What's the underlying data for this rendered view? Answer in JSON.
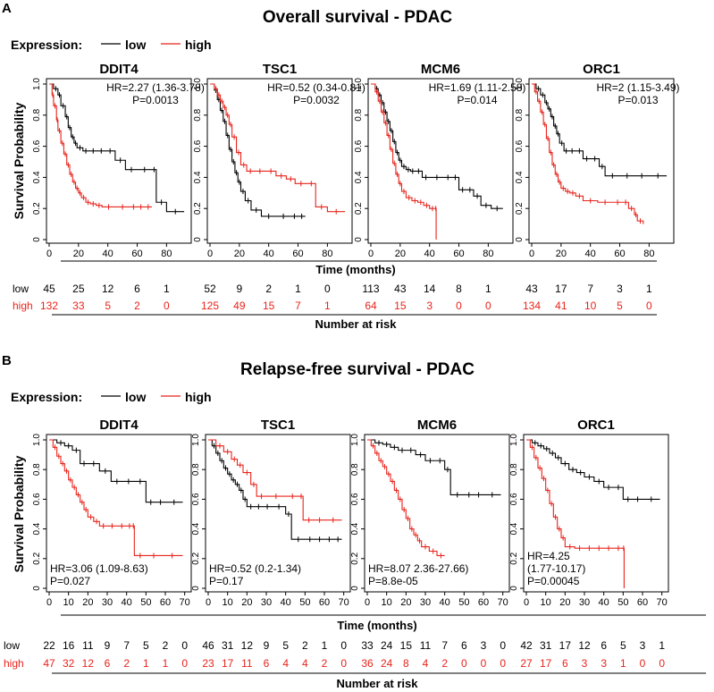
{
  "colors": {
    "low": "#000000",
    "high": "#e8231b"
  },
  "legend": {
    "label": "Expression:",
    "low": "low",
    "high": "high"
  },
  "common": {
    "ylabel": "Survival Probability",
    "xlabel": "Time (months)",
    "risk_title": "Number at risk",
    "risk_low": "low",
    "risk_high": "high"
  },
  "panels": [
    {
      "letter": "A",
      "title": "Overall survival - PDAC",
      "risk_low": [
        45,
        25,
        12,
        6,
        1,
        52,
        9,
        2,
        1,
        0,
        113,
        43,
        14,
        8,
        1,
        43,
        17,
        7,
        3,
        1
      ],
      "risk_high": [
        132,
        33,
        5,
        2,
        0,
        125,
        49,
        15,
        7,
        1,
        64,
        15,
        3,
        0,
        0,
        134,
        41,
        10,
        5,
        0
      ]
    },
    {
      "letter": "B",
      "title": "Relapse-free survival - PDAC",
      "risk_low": [
        22,
        16,
        11,
        9,
        7,
        5,
        2,
        0,
        46,
        31,
        12,
        9,
        5,
        2,
        1,
        0,
        33,
        24,
        15,
        11,
        7,
        6,
        3,
        0,
        42,
        31,
        17,
        12,
        6,
        5,
        3,
        1
      ],
      "risk_high": [
        47,
        32,
        12,
        6,
        2,
        1,
        1,
        0,
        23,
        17,
        11,
        6,
        4,
        4,
        2,
        0,
        36,
        24,
        8,
        4,
        2,
        0,
        0,
        0,
        27,
        17,
        6,
        3,
        3,
        1,
        0,
        0
      ]
    }
  ],
  "chart_data": [
    {
      "type": "line",
      "panel": "A",
      "title": "DDIT4",
      "xlabel": "Time (months)",
      "ylabel": "Survival Probability",
      "xlim": [
        0,
        95
      ],
      "xticks": [
        0,
        20,
        40,
        60,
        80
      ],
      "ylim": [
        0,
        1
      ],
      "yticks": [
        0,
        0.2,
        0.4,
        0.6,
        0.8,
        1.0
      ],
      "annotation": [
        "HR=2.27 (1.36-3.78)",
        "P=0.0013"
      ],
      "annot_pos": "top-right",
      "series": [
        {
          "name": "low",
          "x": [
            0,
            3,
            6,
            8,
            11,
            13,
            15,
            17,
            19,
            23,
            27,
            33,
            38,
            45,
            52,
            60,
            70,
            73,
            80,
            92
          ],
          "y": [
            1,
            0.97,
            0.93,
            0.86,
            0.79,
            0.72,
            0.66,
            0.62,
            0.59,
            0.57,
            0.57,
            0.57,
            0.57,
            0.51,
            0.45,
            0.45,
            0.45,
            0.24,
            0.18,
            0.18
          ]
        },
        {
          "name": "high",
          "x": [
            0,
            2,
            3,
            5,
            6,
            8,
            10,
            12,
            14,
            16,
            18,
            20,
            22,
            25,
            28,
            32,
            36,
            45,
            55,
            60,
            65,
            70
          ],
          "y": [
            1,
            0.93,
            0.86,
            0.77,
            0.7,
            0.62,
            0.55,
            0.48,
            0.42,
            0.37,
            0.33,
            0.3,
            0.27,
            0.24,
            0.23,
            0.22,
            0.21,
            0.21,
            0.21,
            0.21,
            0.21,
            0.21
          ]
        }
      ]
    },
    {
      "type": "line",
      "panel": "A",
      "title": "TSC1",
      "xlabel": "Time (months)",
      "ylabel": "Survival Probability",
      "xlim": [
        0,
        95
      ],
      "xticks": [
        0,
        20,
        40,
        60,
        80
      ],
      "ylim": [
        0,
        1
      ],
      "yticks": [
        0,
        0.2,
        0.4,
        0.6,
        0.8,
        1.0
      ],
      "annotation": [
        "HR=0.52 (0.34-0.81)",
        "P=0.0032"
      ],
      "annot_pos": "top-right",
      "series": [
        {
          "name": "low",
          "x": [
            0,
            3,
            5,
            7,
            9,
            11,
            13,
            15,
            17,
            19,
            21,
            24,
            28,
            35,
            45,
            55,
            60,
            65
          ],
          "y": [
            1,
            0.96,
            0.9,
            0.83,
            0.76,
            0.67,
            0.58,
            0.5,
            0.43,
            0.37,
            0.31,
            0.25,
            0.19,
            0.15,
            0.15,
            0.15,
            0.15,
            0.15
          ]
        },
        {
          "name": "high",
          "x": [
            0,
            3,
            5,
            7,
            9,
            11,
            13,
            15,
            18,
            21,
            25,
            30,
            38,
            45,
            52,
            58,
            66,
            72,
            80,
            92
          ],
          "y": [
            1,
            0.97,
            0.93,
            0.89,
            0.85,
            0.8,
            0.74,
            0.66,
            0.56,
            0.48,
            0.44,
            0.44,
            0.44,
            0.41,
            0.39,
            0.36,
            0.36,
            0.21,
            0.18,
            0.18
          ]
        }
      ]
    },
    {
      "type": "line",
      "panel": "A",
      "title": "MCM6",
      "xlabel": "Time (months)",
      "ylabel": "Survival Probability",
      "xlim": [
        0,
        95
      ],
      "xticks": [
        0,
        20,
        40,
        60,
        80
      ],
      "ylim": [
        0,
        1
      ],
      "yticks": [
        0,
        0.2,
        0.4,
        0.6,
        0.8,
        1.0
      ],
      "annotation": [
        "HR=1.69 (1.11-2.58)",
        "P=0.014"
      ],
      "annot_pos": "top-right",
      "series": [
        {
          "name": "low",
          "x": [
            0,
            3,
            5,
            7,
            9,
            11,
            13,
            15,
            17,
            19,
            21,
            24,
            27,
            30,
            35,
            40,
            50,
            55,
            60,
            65,
            70,
            75,
            82,
            90
          ],
          "y": [
            1,
            0.97,
            0.93,
            0.88,
            0.82,
            0.76,
            0.7,
            0.63,
            0.56,
            0.51,
            0.47,
            0.45,
            0.44,
            0.44,
            0.4,
            0.4,
            0.4,
            0.4,
            0.32,
            0.32,
            0.28,
            0.22,
            0.2,
            0.2
          ]
        },
        {
          "name": "high",
          "x": [
            0,
            3,
            5,
            7,
            9,
            11,
            13,
            15,
            17,
            19,
            21,
            24,
            28,
            32,
            36,
            40,
            44,
            44.5
          ],
          "y": [
            1,
            0.95,
            0.89,
            0.82,
            0.75,
            0.67,
            0.58,
            0.49,
            0.42,
            0.36,
            0.31,
            0.27,
            0.25,
            0.24,
            0.22,
            0.2,
            0.2,
            0.0
          ]
        }
      ]
    },
    {
      "type": "line",
      "panel": "A",
      "title": "ORC1",
      "xlabel": "Time (months)",
      "ylabel": "Survival Probability",
      "xlim": [
        0,
        95
      ],
      "xticks": [
        0,
        20,
        40,
        60,
        80
      ],
      "ylim": [
        0,
        1
      ],
      "yticks": [
        0,
        0.2,
        0.4,
        0.6,
        0.8,
        1.0
      ],
      "annotation": [
        "HR=2 (1.15-3.49)",
        "P=0.013"
      ],
      "annot_pos": "top-right",
      "series": [
        {
          "name": "low",
          "x": [
            0,
            3,
            6,
            9,
            11,
            13,
            15,
            17,
            19,
            22,
            25,
            30,
            35,
            40,
            46,
            50,
            60,
            70,
            80,
            92
          ],
          "y": [
            1,
            0.97,
            0.93,
            0.88,
            0.84,
            0.79,
            0.73,
            0.68,
            0.62,
            0.57,
            0.57,
            0.57,
            0.52,
            0.52,
            0.47,
            0.41,
            0.41,
            0.41,
            0.41,
            0.41
          ]
        },
        {
          "name": "high",
          "x": [
            0,
            2,
            4,
            6,
            8,
            10,
            12,
            14,
            16,
            18,
            20,
            23,
            26,
            30,
            35,
            45,
            55,
            62,
            66,
            70,
            72,
            76
          ],
          "y": [
            1,
            0.95,
            0.89,
            0.82,
            0.74,
            0.65,
            0.56,
            0.48,
            0.42,
            0.37,
            0.33,
            0.31,
            0.3,
            0.28,
            0.25,
            0.24,
            0.24,
            0.24,
            0.2,
            0.16,
            0.12,
            0.1
          ]
        }
      ]
    },
    {
      "type": "line",
      "panel": "B",
      "title": "DDIT4",
      "xlabel": "Time (months)",
      "ylabel": "Survival Probability",
      "xlim": [
        0,
        72
      ],
      "xticks": [
        0,
        10,
        20,
        30,
        40,
        50,
        60,
        70
      ],
      "ylim": [
        0,
        1
      ],
      "yticks": [
        0,
        0.2,
        0.4,
        0.6,
        0.8,
        1.0
      ],
      "annotation": [
        "HR=3.06 (1.09-8.63)",
        "P=0.027"
      ],
      "annot_pos": "bottom-left",
      "series": [
        {
          "name": "low",
          "x": [
            0,
            4,
            8,
            12,
            16,
            20,
            26,
            32,
            38,
            44,
            50,
            55,
            60,
            69
          ],
          "y": [
            1,
            0.98,
            0.96,
            0.93,
            0.84,
            0.84,
            0.79,
            0.72,
            0.72,
            0.72,
            0.58,
            0.58,
            0.58,
            0.58
          ]
        },
        {
          "name": "high",
          "x": [
            0,
            2,
            4,
            6,
            8,
            10,
            12,
            14,
            16,
            18,
            20,
            23,
            26,
            30,
            35,
            40,
            43,
            44,
            50,
            58,
            69
          ],
          "y": [
            1,
            0.95,
            0.89,
            0.84,
            0.79,
            0.73,
            0.68,
            0.63,
            0.58,
            0.53,
            0.48,
            0.45,
            0.42,
            0.42,
            0.42,
            0.42,
            0.42,
            0.22,
            0.22,
            0.22,
            0.22
          ]
        }
      ]
    },
    {
      "type": "line",
      "panel": "B",
      "title": "TSC1",
      "xlabel": "Time (months)",
      "ylabel": "Survival Probability",
      "xlim": [
        0,
        72
      ],
      "xticks": [
        0,
        10,
        20,
        30,
        40,
        50,
        60,
        70
      ],
      "ylim": [
        0,
        1
      ],
      "yticks": [
        0,
        0.2,
        0.4,
        0.6,
        0.8,
        1.0
      ],
      "annotation": [
        "HR=0.52 (0.2-1.34)",
        "P=0.17"
      ],
      "annot_pos": "bottom-left",
      "series": [
        {
          "name": "low",
          "x": [
            0,
            2,
            4,
            6,
            8,
            10,
            12,
            14,
            16,
            18,
            20,
            24,
            28,
            33,
            40,
            43,
            50,
            55,
            60,
            65,
            69
          ],
          "y": [
            1,
            0.96,
            0.91,
            0.86,
            0.81,
            0.77,
            0.73,
            0.7,
            0.66,
            0.6,
            0.55,
            0.55,
            0.55,
            0.55,
            0.5,
            0.33,
            0.33,
            0.33,
            0.33,
            0.33,
            0.33
          ]
        },
        {
          "name": "high",
          "x": [
            0,
            4,
            8,
            12,
            15,
            18,
            22,
            25,
            30,
            40,
            47,
            49,
            55,
            60,
            69
          ],
          "y": [
            1,
            0.96,
            0.92,
            0.87,
            0.83,
            0.78,
            0.7,
            0.62,
            0.62,
            0.62,
            0.62,
            0.46,
            0.46,
            0.46,
            0.46
          ]
        }
      ]
    },
    {
      "type": "line",
      "panel": "B",
      "title": "MCM6",
      "xlabel": "Time (months)",
      "ylabel": "Survival Probability",
      "xlim": [
        0,
        72
      ],
      "xticks": [
        0,
        10,
        20,
        30,
        40,
        50,
        60,
        70
      ],
      "ylim": [
        0,
        1
      ],
      "yticks": [
        0,
        0.2,
        0.4,
        0.6,
        0.8,
        1.0
      ],
      "annotation": [
        "HR=8.07 2.36-27.66)",
        "P=8.8e-05"
      ],
      "annot_pos": "bottom-left",
      "series": [
        {
          "name": "low",
          "x": [
            0,
            4,
            8,
            12,
            16,
            20,
            25,
            30,
            35,
            40,
            43,
            50,
            55,
            60,
            69
          ],
          "y": [
            1,
            0.98,
            0.97,
            0.95,
            0.93,
            0.93,
            0.9,
            0.86,
            0.86,
            0.8,
            0.63,
            0.63,
            0.63,
            0.63,
            0.63
          ]
        },
        {
          "name": "high",
          "x": [
            0,
            2,
            4,
            6,
            8,
            10,
            12,
            14,
            16,
            18,
            20,
            22,
            24,
            26,
            28,
            32,
            36,
            40
          ],
          "y": [
            1,
            0.96,
            0.91,
            0.86,
            0.82,
            0.77,
            0.72,
            0.66,
            0.6,
            0.53,
            0.47,
            0.4,
            0.36,
            0.32,
            0.28,
            0.25,
            0.22,
            0.22
          ]
        }
      ]
    },
    {
      "type": "line",
      "panel": "B",
      "title": "ORC1",
      "xlabel": "Time (months)",
      "ylabel": "Survival Probability",
      "xlim": [
        0,
        72
      ],
      "xticks": [
        0,
        10,
        20,
        30,
        40,
        50,
        60,
        70
      ],
      "ylim": [
        0,
        1
      ],
      "yticks": [
        0,
        0.2,
        0.4,
        0.6,
        0.8,
        1.0
      ],
      "annotation": [
        "HR=4.25",
        "(1.77-10.17)",
        "P=0.00045"
      ],
      "annot_pos": "bottom-left",
      "series": [
        {
          "name": "low",
          "x": [
            0,
            3,
            6,
            9,
            12,
            15,
            18,
            22,
            26,
            30,
            35,
            40,
            45,
            50,
            55,
            60,
            69
          ],
          "y": [
            1,
            0.98,
            0.96,
            0.94,
            0.91,
            0.88,
            0.84,
            0.8,
            0.78,
            0.75,
            0.72,
            0.68,
            0.68,
            0.6,
            0.6,
            0.6,
            0.6
          ]
        },
        {
          "name": "high",
          "x": [
            0,
            2,
            4,
            6,
            8,
            10,
            12,
            14,
            16,
            18,
            20,
            25,
            30,
            35,
            40,
            45,
            50,
            50.5
          ],
          "y": [
            1,
            0.95,
            0.88,
            0.81,
            0.74,
            0.66,
            0.57,
            0.48,
            0.4,
            0.34,
            0.28,
            0.27,
            0.27,
            0.27,
            0.27,
            0.27,
            0.27,
            0.0
          ]
        }
      ]
    }
  ]
}
